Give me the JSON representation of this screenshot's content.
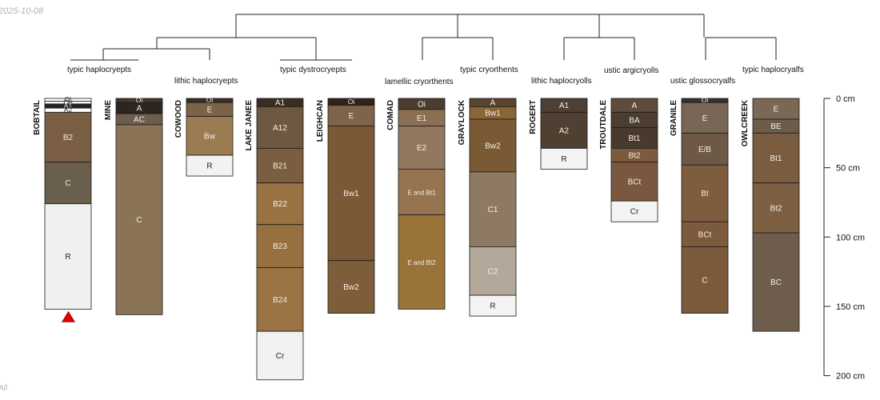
{
  "header": {
    "date": "2025-10-08",
    "corner_mark": "All"
  },
  "depth_axis": {
    "unit": "cm",
    "ticks": [
      0,
      50,
      100,
      150,
      200
    ],
    "range": [
      0,
      200
    ]
  },
  "subgroups": [
    {
      "id": "g1",
      "label": "typic haplocryepts"
    },
    {
      "id": "g2",
      "label": "lithic haplocryepts"
    },
    {
      "id": "g3",
      "label": "typic dystrocryepts"
    },
    {
      "id": "g4",
      "label": "lamellic cryorthents"
    },
    {
      "id": "g5",
      "label": "typic cryorthents"
    },
    {
      "id": "g6",
      "label": "lithic haplocryolls"
    },
    {
      "id": "g7",
      "label": "ustic argicryolls"
    },
    {
      "id": "g8",
      "label": "ustic glossocryalfs"
    },
    {
      "id": "g9",
      "label": "typic haplocryalfs"
    }
  ],
  "profiles": [
    {
      "name": "BOBTAIL",
      "marker": "red-triangle",
      "horizons": [
        {
          "name": "Oi",
          "top": 0,
          "bottom": 2,
          "color": "#ffffff"
        },
        {
          "name": "Oe",
          "top": 2,
          "bottom": 4,
          "color": "#f4f4f4"
        },
        {
          "name": "A1",
          "top": 4,
          "bottom": 7,
          "color": "#2a221c"
        },
        {
          "name": "A2",
          "top": 7,
          "bottom": 10,
          "color": "#ffffff"
        },
        {
          "name": "B2",
          "top": 10,
          "bottom": 46,
          "color": "#7a5f44"
        },
        {
          "name": "C",
          "top": 46,
          "bottom": 76,
          "color": "#6a5e4e"
        },
        {
          "name": "R",
          "top": 76,
          "bottom": 152,
          "color": "#f0f0f0"
        }
      ]
    },
    {
      "name": "MINE",
      "horizons": [
        {
          "name": "Oi",
          "top": 0,
          "bottom": 3,
          "color": "#45382c"
        },
        {
          "name": "A",
          "top": 3,
          "bottom": 11,
          "color": "#2d251f"
        },
        {
          "name": "AC",
          "top": 11,
          "bottom": 19,
          "color": "#6c5d4e"
        },
        {
          "name": "C",
          "top": 19,
          "bottom": 156,
          "color": "#8b7356"
        }
      ]
    },
    {
      "name": "COWOOD",
      "horizons": [
        {
          "name": "Oi",
          "top": 0,
          "bottom": 3,
          "color": "#3c2e22"
        },
        {
          "name": "E",
          "top": 3,
          "bottom": 13,
          "color": "#7c6246"
        },
        {
          "name": "Bw",
          "top": 13,
          "bottom": 41,
          "color": "#9b7b52"
        },
        {
          "name": "R",
          "top": 41,
          "bottom": 56,
          "color": "#f2f2f2"
        }
      ]
    },
    {
      "name": "LAKE JANEE",
      "horizons": [
        {
          "name": "A1",
          "top": 0,
          "bottom": 6,
          "color": "#3a2c20"
        },
        {
          "name": "A12",
          "top": 6,
          "bottom": 36,
          "color": "#6f5841"
        },
        {
          "name": "B21",
          "top": 36,
          "bottom": 61,
          "color": "#7b5e40"
        },
        {
          "name": "B22",
          "top": 61,
          "bottom": 91,
          "color": "#9a7143"
        },
        {
          "name": "B23",
          "top": 91,
          "bottom": 122,
          "color": "#96703f"
        },
        {
          "name": "B24",
          "top": 122,
          "bottom": 168,
          "color": "#9b7345"
        },
        {
          "name": "Cr",
          "top": 168,
          "bottom": 203,
          "color": "#f1f1f1"
        }
      ]
    },
    {
      "name": "LEIGHCAN",
      "horizons": [
        {
          "name": "Oi",
          "top": 0,
          "bottom": 5,
          "color": "#2e241c"
        },
        {
          "name": "E",
          "top": 5,
          "bottom": 20,
          "color": "#7e6448"
        },
        {
          "name": "Bw1",
          "top": 20,
          "bottom": 117,
          "color": "#7a5a36"
        },
        {
          "name": "Bw2",
          "top": 117,
          "bottom": 155,
          "color": "#7e5d3b"
        }
      ]
    },
    {
      "name": "COMAD",
      "horizons": [
        {
          "name": "Oi",
          "top": 0,
          "bottom": 8,
          "color": "#4c3d30"
        },
        {
          "name": "E1",
          "top": 8,
          "bottom": 20,
          "color": "#8b7054"
        },
        {
          "name": "E2",
          "top": 20,
          "bottom": 51,
          "color": "#937860"
        },
        {
          "name": "E and Bt1",
          "top": 51,
          "bottom": 84,
          "color": "#96744f"
        },
        {
          "name": "E and Bt2",
          "top": 84,
          "bottom": 152,
          "color": "#9a7339"
        }
      ]
    },
    {
      "name": "GRAYLOCK",
      "horizons": [
        {
          "name": "A",
          "top": 0,
          "bottom": 6,
          "color": "#5a4330"
        },
        {
          "name": "Bw1",
          "top": 6,
          "bottom": 15,
          "color": "#8a6535"
        },
        {
          "name": "Bw2",
          "top": 15,
          "bottom": 53,
          "color": "#7a5a34"
        },
        {
          "name": "C1",
          "top": 53,
          "bottom": 107,
          "color": "#8e7a63"
        },
        {
          "name": "C2",
          "top": 107,
          "bottom": 142,
          "color": "#b3a89a"
        },
        {
          "name": "R",
          "top": 142,
          "bottom": 157,
          "color": "#f3f3f3"
        }
      ]
    },
    {
      "name": "ROGERT",
      "horizons": [
        {
          "name": "A1",
          "top": 0,
          "bottom": 10,
          "color": "#4b3f36"
        },
        {
          "name": "A2",
          "top": 10,
          "bottom": 36,
          "color": "#4f4032"
        },
        {
          "name": "R",
          "top": 36,
          "bottom": 51,
          "color": "#f4f4f4"
        }
      ]
    },
    {
      "name": "TROUTDALE",
      "horizons": [
        {
          "name": "A",
          "top": 0,
          "bottom": 10,
          "color": "#5e4d3b"
        },
        {
          "name": "BA",
          "top": 10,
          "bottom": 21,
          "color": "#4b3d30"
        },
        {
          "name": "Bt1",
          "top": 21,
          "bottom": 36,
          "color": "#483a2c"
        },
        {
          "name": "Bt2",
          "top": 36,
          "bottom": 46,
          "color": "#7d5a3e"
        },
        {
          "name": "BCt",
          "top": 46,
          "bottom": 74,
          "color": "#7a5840"
        },
        {
          "name": "Cr",
          "top": 74,
          "bottom": 89,
          "color": "#f3f3f3"
        }
      ]
    },
    {
      "name": "GRANILE",
      "horizons": [
        {
          "name": "Oi",
          "top": 0,
          "bottom": 3,
          "color": "#3c3128"
        },
        {
          "name": "E",
          "top": 3,
          "bottom": 25,
          "color": "#786756"
        },
        {
          "name": "E/B",
          "top": 25,
          "bottom": 48,
          "color": "#6d5946"
        },
        {
          "name": "Bt",
          "top": 48,
          "bottom": 89,
          "color": "#7e5c3e"
        },
        {
          "name": "BCt",
          "top": 89,
          "bottom": 107,
          "color": "#7c5a3c"
        },
        {
          "name": "C",
          "top": 107,
          "bottom": 155,
          "color": "#7b5a3c"
        }
      ]
    },
    {
      "name": "OWLCREEK",
      "horizons": [
        {
          "name": "E",
          "top": 0,
          "bottom": 15,
          "color": "#7a6855"
        },
        {
          "name": "BE",
          "top": 15,
          "bottom": 25,
          "color": "#6c5c4a"
        },
        {
          "name": "Bt1",
          "top": 25,
          "bottom": 61,
          "color": "#7a5c40"
        },
        {
          "name": "Bt2",
          "top": 61,
          "bottom": 97,
          "color": "#7d5f42"
        },
        {
          "name": "BC",
          "top": 97,
          "bottom": 168,
          "color": "#6e5d4d"
        }
      ]
    }
  ]
}
